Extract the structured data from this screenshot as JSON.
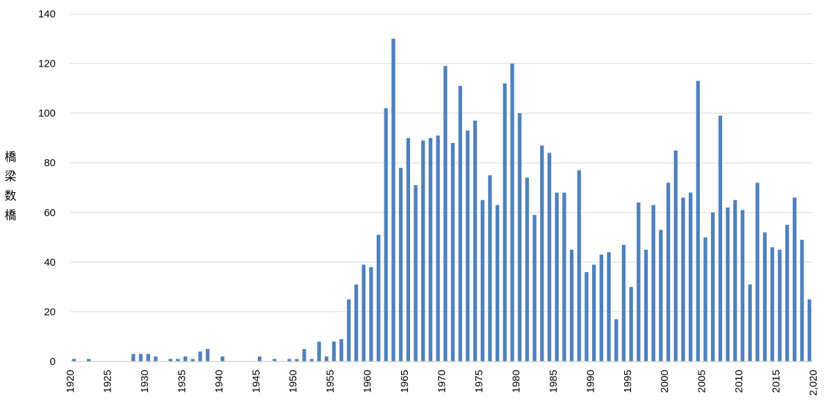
{
  "chart_data": {
    "type": "bar",
    "title": "",
    "xlabel": "",
    "ylabel": "橋梁数橋",
    "ylabel_chars": [
      "橋",
      "梁",
      "数",
      "橋"
    ],
    "xlim": [
      1920,
      2020
    ],
    "ylim": [
      0,
      140
    ],
    "yticks": [
      0,
      20,
      40,
      60,
      80,
      100,
      120,
      140
    ],
    "xticks": [
      {
        "value": 1920,
        "label": "1920"
      },
      {
        "value": 1925,
        "label": "1925"
      },
      {
        "value": 1930,
        "label": "1930"
      },
      {
        "value": 1935,
        "label": "1935"
      },
      {
        "value": 1940,
        "label": "1940"
      },
      {
        "value": 1945,
        "label": "1945"
      },
      {
        "value": 1950,
        "label": "1950"
      },
      {
        "value": 1955,
        "label": "1955"
      },
      {
        "value": 1960,
        "label": "1960"
      },
      {
        "value": 1965,
        "label": "1965"
      },
      {
        "value": 1970,
        "label": "1970"
      },
      {
        "value": 1975,
        "label": "1975"
      },
      {
        "value": 1980,
        "label": "1980"
      },
      {
        "value": 1985,
        "label": "1985"
      },
      {
        "value": 1990,
        "label": "1990"
      },
      {
        "value": 1995,
        "label": "1995"
      },
      {
        "value": 2000,
        "label": "2000"
      },
      {
        "value": 2005,
        "label": "2005"
      },
      {
        "value": 2010,
        "label": "2010"
      },
      {
        "value": 2015,
        "label": "2015"
      },
      {
        "value": 2020,
        "label": "2,020"
      }
    ],
    "grid": true,
    "legend": "none",
    "colors": {
      "bar": "#4f81bd",
      "grid": "#d9d9d9",
      "axis": "#bfbfbf"
    },
    "x": [
      1920,
      1921,
      1922,
      1923,
      1924,
      1925,
      1926,
      1927,
      1928,
      1929,
      1930,
      1931,
      1932,
      1933,
      1934,
      1935,
      1936,
      1937,
      1938,
      1939,
      1940,
      1941,
      1942,
      1943,
      1944,
      1945,
      1946,
      1947,
      1948,
      1949,
      1950,
      1951,
      1952,
      1953,
      1954,
      1955,
      1956,
      1957,
      1958,
      1959,
      1960,
      1961,
      1962,
      1963,
      1964,
      1965,
      1966,
      1967,
      1968,
      1969,
      1970,
      1971,
      1972,
      1973,
      1974,
      1975,
      1976,
      1977,
      1978,
      1979,
      1980,
      1981,
      1982,
      1983,
      1984,
      1985,
      1986,
      1987,
      1988,
      1989,
      1990,
      1991,
      1992,
      1993,
      1994,
      1995,
      1996,
      1997,
      1998,
      1999,
      2000,
      2001,
      2002,
      2003,
      2004,
      2005,
      2006,
      2007,
      2008,
      2009,
      2010,
      2011,
      2012,
      2013,
      2014,
      2015,
      2016,
      2017,
      2018,
      2019
    ],
    "values": [
      1,
      0,
      1,
      0,
      0,
      0,
      0,
      0,
      3,
      3,
      3,
      2,
      0,
      1,
      1,
      2,
      1,
      4,
      5,
      0,
      2,
      0,
      0,
      0,
      0,
      2,
      0,
      1,
      0,
      1,
      1,
      5,
      1,
      8,
      2,
      8,
      9,
      25,
      31,
      39,
      38,
      51,
      102,
      130,
      78,
      90,
      71,
      89,
      90,
      91,
      119,
      88,
      111,
      93,
      97,
      65,
      75,
      63,
      112,
      120,
      100,
      74,
      59,
      87,
      84,
      68,
      68,
      45,
      77,
      36,
      39,
      43,
      44,
      17,
      47,
      30,
      64,
      45,
      63,
      53,
      72,
      85,
      66,
      68,
      113,
      50,
      60,
      99,
      62,
      65,
      61,
      31,
      72,
      52,
      46,
      45,
      55,
      66,
      49,
      25
    ]
  }
}
